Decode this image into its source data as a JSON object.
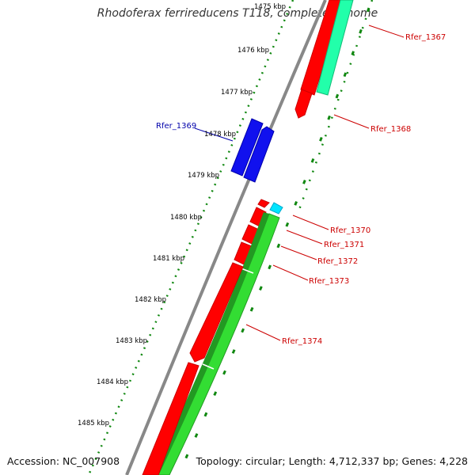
{
  "title": "Rhodoferax ferrireducens T118, complete genome",
  "accession": "Accession: NC_007908",
  "topology": "Topology: circular; Length: 4,712,337 bp; Genes: 4,228",
  "colors": {
    "forward_cds": "#ff0000",
    "reverse_cds": "#0000ff",
    "highlight_cds": "#00e5ff",
    "rna_dark_green": "#229922",
    "rna_light_green": "#33dd33",
    "teal_feature": "#22ffaa",
    "tick_green": "#118811",
    "backbone": "#888888",
    "label_red": "#cc0000",
    "label_blue": "#0000aa"
  },
  "scale_ticks": [
    {
      "label": "1475 kbp"
    },
    {
      "label": "1476 kbp"
    },
    {
      "label": "1477 kbp"
    },
    {
      "label": "1478 kbp"
    },
    {
      "label": "1479 kbp"
    },
    {
      "label": "1480 kbp"
    },
    {
      "label": "1481 kbp"
    },
    {
      "label": "1482 kbp"
    },
    {
      "label": "1483 kbp"
    },
    {
      "label": "1484 kbp"
    },
    {
      "label": "1485 kbp"
    }
  ],
  "gene_labels": [
    {
      "name": "Rfer_1367",
      "color": "#cc0000"
    },
    {
      "name": "Rfer_1368",
      "color": "#cc0000"
    },
    {
      "name": "Rfer_1369",
      "color": "#0000aa"
    },
    {
      "name": "Rfer_1370",
      "color": "#cc0000"
    },
    {
      "name": "Rfer_1371",
      "color": "#cc0000"
    },
    {
      "name": "Rfer_1372",
      "color": "#cc0000"
    },
    {
      "name": "Rfer_1373",
      "color": "#cc0000"
    },
    {
      "name": "Rfer_1374",
      "color": "#cc0000"
    }
  ]
}
